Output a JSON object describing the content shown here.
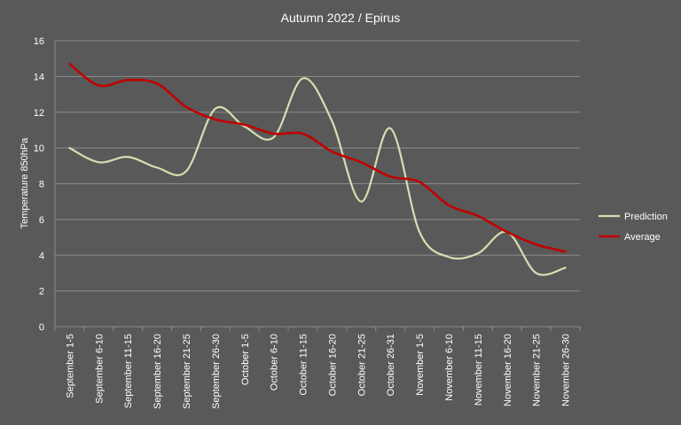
{
  "chart_data": {
    "type": "line",
    "title": "Autumn  2022 / Epirus",
    "xlabel": "",
    "ylabel": "Temperature  850hPa",
    "ylim": [
      0,
      16
    ],
    "yticks": [
      0,
      2,
      4,
      6,
      8,
      10,
      12,
      14,
      16
    ],
    "grid": true,
    "legend_position": "right",
    "categories": [
      "September 1-5",
      "September 6-10",
      "September 11-15",
      "September 16-20",
      "September 21-25",
      "September 26-30",
      "October 1-5",
      "October 6-10",
      "October 11-15",
      "October 16-20",
      "October 21-25",
      "October 26-31",
      "November 1-5",
      "November 6-10",
      "November 11-15",
      "November 16-20",
      "November 21-25",
      "November 26-30"
    ],
    "series": [
      {
        "name": "Prediction",
        "color": "#d4dfb0",
        "values": [
          10.0,
          9.2,
          9.5,
          8.9,
          8.7,
          12.2,
          11.2,
          10.6,
          13.9,
          11.5,
          7.0,
          11.1,
          5.3,
          3.9,
          4.1,
          5.3,
          3.0,
          3.3
        ]
      },
      {
        "name": "Average",
        "color": "#c00000",
        "values": [
          14.7,
          13.5,
          13.8,
          13.6,
          12.3,
          11.6,
          11.3,
          10.8,
          10.8,
          9.8,
          9.2,
          8.4,
          8.1,
          6.8,
          6.2,
          5.3,
          4.6,
          4.2
        ]
      }
    ]
  }
}
